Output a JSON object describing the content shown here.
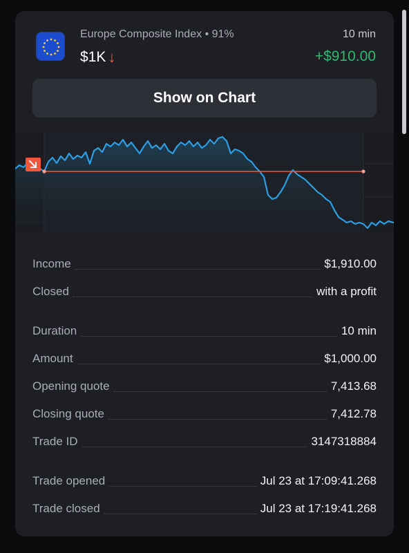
{
  "header": {
    "asset_name": "Europe Composite Index",
    "payout_separator": "•",
    "payout": "91%",
    "investment": "$1K",
    "direction_arrow": "↓",
    "duration": "10 min",
    "profit": "+$910.00"
  },
  "show_chart_label": "Show on Chart",
  "details": {
    "income": {
      "label": "Income",
      "value": "$1,910.00"
    },
    "closed": {
      "label": "Closed",
      "value": "with a profit"
    },
    "duration": {
      "label": "Duration",
      "value": "10 min"
    },
    "amount": {
      "label": "Amount",
      "value": "$1,000.00"
    },
    "opening_quote": {
      "label": "Opening quote",
      "value": "7,413.68"
    },
    "closing_quote": {
      "label": "Closing quote",
      "value": "7,412.78"
    },
    "trade_id": {
      "label": "Trade ID",
      "value": "3147318884"
    },
    "trade_opened": {
      "label": "Trade opened",
      "value": "Jul 23 at 17:09:41.268"
    },
    "trade_closed": {
      "label": "Trade closed",
      "value": "Jul 23 at 17:19:41.268"
    }
  },
  "colors": {
    "profit": "#31b871",
    "down": "#f0573c",
    "line": "#2a9fe6",
    "strike": "#f0573c",
    "card": "#1d1f24"
  },
  "icons": {
    "flag": "eu-flag-icon",
    "direction": "arrow-down-icon",
    "marker": "down-marker-icon"
  }
}
